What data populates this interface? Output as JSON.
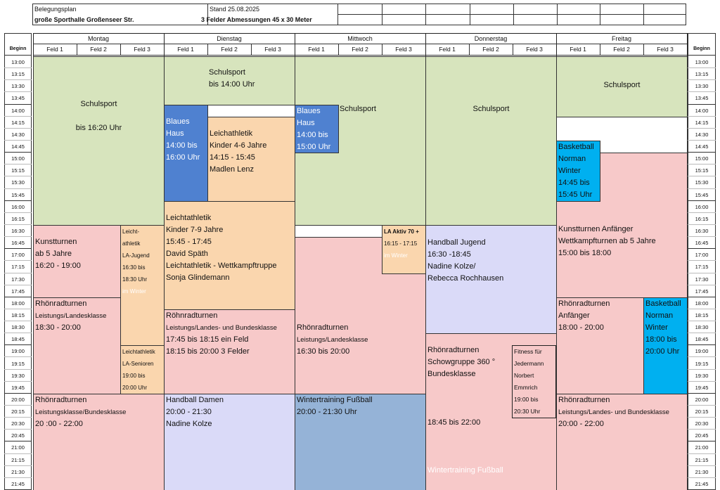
{
  "header": {
    "title": "Belegungsplan",
    "venue": "große Sporthalle  Großenseer Str.",
    "date": "Stand 25.08.2025",
    "dimensions": "3 Felder  Abmessungen 45 x 30 Meter"
  },
  "time_header": "Beginn",
  "times": [
    "13:00",
    "13:15",
    "13:30",
    "13:45",
    "14:00",
    "14:15",
    "14:30",
    "14:45",
    "15:00",
    "15:15",
    "15:30",
    "15:45",
    "16:00",
    "16:15",
    "16:30",
    "16:45",
    "17:00",
    "17:15",
    "17:30",
    "17:45",
    "18:00",
    "18:15",
    "18:30",
    "18:45",
    "19:00",
    "19:15",
    "19:30",
    "19:45",
    "20:00",
    "20:15",
    "20:30",
    "20:45",
    "21:00",
    "21:15",
    "21:30",
    "21:45"
  ],
  "days": [
    {
      "name": "Montag",
      "fields": [
        "Feld 1",
        "Feld 2",
        "Feld 3"
      ]
    },
    {
      "name": "Dienstag",
      "fields": [
        "Feld 1",
        "Feld 2",
        "Feld 3"
      ]
    },
    {
      "name": "Mittwoch",
      "fields": [
        "Feld 1",
        "Feld 2",
        "Feld 3"
      ]
    },
    {
      "name": "Donnerstag",
      "fields": [
        "Feld 1",
        "Feld 2",
        "Feld 3"
      ]
    },
    {
      "name": "Freitag",
      "fields": [
        "Feld 1",
        "Feld 2",
        "Feld 3"
      ]
    }
  ],
  "blocks": [
    {
      "color": "#d7e4bd",
      "lines": [
        "Schulsport",
        "bis 16:20 Uhr"
      ]
    },
    {
      "color": "#f7c9c9",
      "lines": [
        "Kunstturnen",
        "ab 5 Jahre",
        "16:20 - 19:00"
      ]
    },
    {
      "color": "#fad6ae",
      "lines": [
        "Leicht-",
        "athletik",
        "LA-Jugend",
        "16:30 bis",
        "18:30 Uhr",
        "im Winter"
      ]
    },
    {
      "color": "#fad6ae",
      "lines": [
        "Leichtathletik",
        "LA-Senioren",
        "19:00 bis",
        "20:00 Uhr"
      ]
    },
    {
      "color": "#f7c9c9",
      "lines": [
        "Rhönradturnen",
        "Leistungs/Landesklasse",
        "18:30 - 20:00"
      ]
    },
    {
      "color": "#f7c9c9",
      "lines": [
        "Rhönradturnen",
        "Leistungsklasse/Bundesklasse",
        "20 :00 - 22:00"
      ]
    },
    {
      "color": "#d7e4bd",
      "lines": [
        "Schulsport",
        "bis 14:00 Uhr"
      ]
    },
    {
      "color": "#4f81d0",
      "lines": [
        "Blaues",
        "Haus",
        "14:00 bis",
        "16:00 Uhr"
      ]
    },
    {
      "color": "#fad6ae",
      "lines": [
        "Leichathletik",
        "Kinder 4-6 Jahre",
        "14:15 - 15:45",
        "Madlen Lenz"
      ]
    },
    {
      "color": "#fad6ae",
      "lines": [
        "Leichtathletik",
        "Kinder 7-9 Jahre",
        "15:45 - 17:45",
        "David Späth",
        "Leichtathletik - Wettkampftruppe",
        "Sonja Glindemann"
      ]
    },
    {
      "color": "#f7c9c9",
      "lines": [
        "Röhnradturnen",
        "Leistungs/Landes- und Bundesklasse",
        "17:45 bis 18:15 ein Feld",
        "18:15 bis 20:00 3 Felder"
      ]
    },
    {
      "color": "#dadaf8",
      "lines": [
        "Handball Damen",
        "20:00 - 21:30",
        "Nadine Kolze"
      ]
    },
    {
      "color": "#d7e4bd",
      "lines": [
        "Schulsport"
      ]
    },
    {
      "color": "#4f81d0",
      "lines": [
        "Blaues",
        "Haus",
        "14:00 bis",
        "15:00 Uhr"
      ]
    },
    {
      "color": "#f7c9c9",
      "lines": [
        "Rhönradturnen",
        "Leistungs/Landesklasse",
        "16:30 bis 20:00"
      ]
    },
    {
      "color": "#fad6ae",
      "lines": [
        "LA Aktiv 70 +",
        "16:15 - 17:15",
        "im Winter"
      ]
    },
    {
      "color": "#95b3d7",
      "lines": [
        "Wintertraining Fußball",
        "20:00 - 21:30 Uhr"
      ]
    },
    {
      "color": "#d7e4bd",
      "lines": [
        "Schulsport"
      ]
    },
    {
      "color": "#dadaf8",
      "lines": [
        "Handball Jugend",
        "16:30 -18:45",
        "Nadine Kolze/",
        "Rebecca Rochhausen"
      ]
    },
    {
      "color": "#f7c9c9",
      "lines": [
        "Rhönradturnen",
        "Schowgruppe 360 °",
        " Bundesklasse",
        "18:45 bis 22:00",
        "Wintertraining Fußball"
      ]
    },
    {
      "color": "#f7c9c9",
      "lines": [
        "Fitness für",
        "Jedermann",
        "Norbert",
        "Emmrich",
        "19:00 bis",
        "20:30 Uhr"
      ]
    },
    {
      "color": "#d7e4bd",
      "lines": [
        "Schulsport"
      ]
    },
    {
      "color": "#f7c9c9",
      "lines": [
        "Kunstturnen  Anfänger",
        "Wettkampfturnen ab 5 Jahre",
        "15:00 bis 18:00"
      ]
    },
    {
      "color": "#00b0f0",
      "lines": [
        "Basketball",
        "Norman",
        "Winter",
        "14:45 bis",
        "15:45 Uhr"
      ]
    },
    {
      "color": "#f7c9c9",
      "lines": [
        "Rhönradturnen",
        "Anfänger",
        "18:00 - 20:00"
      ]
    },
    {
      "color": "#00b0f0",
      "lines": [
        "Basketball",
        "Norman",
        "Winter",
        "18:00 bis",
        "20:00 Uhr"
      ]
    },
    {
      "color": "#f7c9c9",
      "lines": [
        "Rhönradturnen",
        "Leistungs/Landes- und Bundesklasse",
        "20:00 - 22:00"
      ]
    }
  ]
}
